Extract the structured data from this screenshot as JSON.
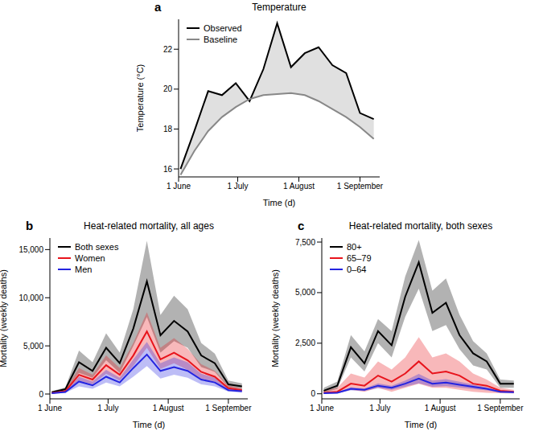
{
  "chart_data": [
    {
      "type": "line",
      "label": "a",
      "title": "Temperature",
      "x_label": "Time (d)",
      "y_label": "Temperature (°C)",
      "x": [
        1,
        8,
        15,
        22,
        29,
        36,
        43,
        50,
        57,
        64,
        71,
        78,
        85,
        92,
        99
      ],
      "xlim": [
        0,
        102
      ],
      "xticks": [
        {
          "value": 0,
          "label": "1 June"
        },
        {
          "value": 30,
          "label": "1 July"
        },
        {
          "value": 61,
          "label": "1 August"
        },
        {
          "value": 92,
          "label": "1 September"
        }
      ],
      "ylim": [
        15.6,
        23.5
      ],
      "yticks": [
        16,
        18,
        20,
        22
      ],
      "grid": false,
      "legend": "upper left",
      "series": [
        {
          "name": "Observed",
          "color": "#000000",
          "values": [
            16.0,
            17.9,
            19.9,
            19.7,
            20.3,
            19.4,
            21.0,
            23.3,
            21.1,
            21.8,
            22.1,
            21.2,
            20.8,
            18.8,
            18.5
          ]
        },
        {
          "name": "Baseline",
          "color": "#888888",
          "values": [
            15.7,
            16.9,
            17.9,
            18.6,
            19.1,
            19.5,
            19.7,
            19.75,
            19.8,
            19.7,
            19.4,
            19.0,
            18.6,
            18.1,
            17.5
          ]
        }
      ]
    },
    {
      "type": "line",
      "label": "b",
      "title": "Heat-related mortality, all ages",
      "x_label": "Time (d)",
      "y_label": "Mortality (weekly deaths)",
      "x": [
        1,
        8,
        15,
        22,
        29,
        36,
        43,
        50,
        57,
        64,
        71,
        78,
        85,
        92,
        99
      ],
      "xlim": [
        0,
        102
      ],
      "xticks": [
        {
          "value": 0,
          "label": "1 June"
        },
        {
          "value": 30,
          "label": "1 July"
        },
        {
          "value": 61,
          "label": "1 August"
        },
        {
          "value": 92,
          "label": "1 September"
        }
      ],
      "ylim": [
        -500,
        16200
      ],
      "yticks": [
        0,
        {
          "value": 5000,
          "label": "5,000"
        },
        {
          "value": 10000,
          "label": "10,000"
        },
        {
          "value": 15000,
          "label": "15,000"
        }
      ],
      "grid": false,
      "legend": "upper left",
      "series": [
        {
          "name": "Both sexes",
          "color": "#000000",
          "values": [
            200,
            500,
            3300,
            2400,
            4800,
            3200,
            6800,
            11700,
            6100,
            7600,
            6500,
            4000,
            3200,
            1000,
            800
          ],
          "lower": [
            100,
            300,
            2200,
            1700,
            3500,
            2200,
            5000,
            8000,
            4300,
            5500,
            4800,
            2800,
            2300,
            700,
            500
          ],
          "upper": [
            300,
            700,
            4500,
            3300,
            6300,
            4300,
            8800,
            15900,
            8200,
            10200,
            8800,
            5300,
            4200,
            1400,
            1100
          ]
        },
        {
          "name": "Women",
          "color": "#e8141c",
          "values": [
            100,
            300,
            2000,
            1500,
            3000,
            2000,
            4000,
            6500,
            3600,
            4300,
            3500,
            2300,
            1800,
            600,
            400
          ],
          "lower": [
            50,
            200,
            1400,
            1000,
            2100,
            1400,
            2900,
            4800,
            2600,
            3200,
            2500,
            1600,
            1300,
            400,
            250
          ],
          "upper": [
            200,
            450,
            2700,
            2000,
            4000,
            2700,
            5300,
            8500,
            4800,
            5800,
            4700,
            3100,
            2400,
            900,
            600
          ]
        },
        {
          "name": "Men",
          "color": "#2424e0",
          "values": [
            80,
            200,
            1300,
            900,
            1800,
            1200,
            2700,
            4100,
            2400,
            2800,
            2400,
            1500,
            1200,
            400,
            300
          ],
          "lower": [
            30,
            120,
            800,
            550,
            1200,
            800,
            1800,
            2900,
            1600,
            2000,
            1700,
            1000,
            800,
            250,
            150
          ],
          "upper": [
            150,
            300,
            1800,
            1300,
            2500,
            1700,
            3600,
            5400,
            3200,
            3800,
            3300,
            2100,
            1700,
            600,
            450
          ]
        }
      ]
    },
    {
      "type": "line",
      "label": "c",
      "title": "Heat-related mortality, both sexes",
      "x_label": "Time (d)",
      "y_label": "Mortality (weekly deaths)",
      "x": [
        1,
        8,
        15,
        22,
        29,
        36,
        43,
        50,
        57,
        64,
        71,
        78,
        85,
        92,
        99
      ],
      "xlim": [
        0,
        102
      ],
      "xticks": [
        {
          "value": 0,
          "label": "1 June"
        },
        {
          "value": 30,
          "label": "1 July"
        },
        {
          "value": 61,
          "label": "1 August"
        },
        {
          "value": 92,
          "label": "1 September"
        }
      ],
      "ylim": [
        -250,
        7700
      ],
      "yticks": [
        0,
        {
          "value": 2500,
          "label": "2,500"
        },
        {
          "value": 5000,
          "label": "5,000"
        },
        {
          "value": 7500,
          "label": "7,500"
        }
      ],
      "grid": false,
      "legend": "upper left",
      "series": [
        {
          "name": "80+",
          "color": "#000000",
          "values": [
            150,
            400,
            2300,
            1500,
            3100,
            2400,
            4800,
            6500,
            4000,
            4500,
            2900,
            2000,
            1600,
            500,
            500
          ],
          "lower": [
            50,
            250,
            1800,
            1100,
            2500,
            1800,
            3800,
            5200,
            3100,
            3400,
            2200,
            1400,
            1200,
            300,
            300
          ],
          "upper": [
            300,
            600,
            2900,
            2100,
            3700,
            3100,
            5800,
            7600,
            5100,
            5700,
            3900,
            2600,
            2000,
            700,
            650
          ]
        },
        {
          "name": "65–79",
          "color": "#e8141c",
          "values": [
            50,
            100,
            500,
            400,
            900,
            600,
            1000,
            1600,
            1000,
            1100,
            900,
            500,
            400,
            150,
            100
          ],
          "lower": [
            0,
            20,
            200,
            100,
            300,
            100,
            300,
            500,
            300,
            300,
            200,
            100,
            50,
            30,
            20
          ],
          "upper": [
            150,
            300,
            1000,
            800,
            1600,
            1200,
            1800,
            2800,
            1800,
            2000,
            1600,
            1000,
            700,
            300,
            200
          ]
        },
        {
          "name": "0–64",
          "color": "#2424e0",
          "values": [
            30,
            50,
            250,
            200,
            400,
            300,
            500,
            750,
            500,
            550,
            450,
            350,
            250,
            100,
            80
          ],
          "lower": [
            15,
            30,
            170,
            140,
            280,
            200,
            350,
            520,
            350,
            380,
            310,
            240,
            170,
            60,
            50
          ],
          "upper": [
            45,
            70,
            330,
            260,
            520,
            400,
            650,
            980,
            650,
            720,
            590,
            460,
            330,
            140,
            110
          ]
        }
      ]
    }
  ]
}
